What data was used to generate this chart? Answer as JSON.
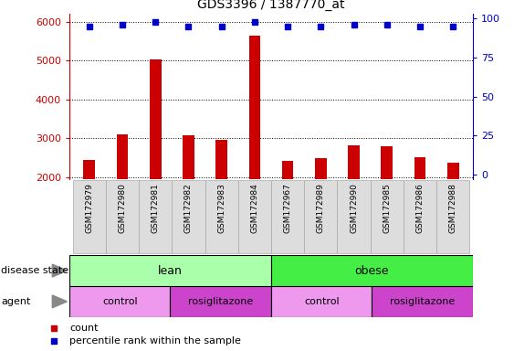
{
  "title": "GDS3396 / 1387770_at",
  "samples": [
    "GSM172979",
    "GSM172980",
    "GSM172981",
    "GSM172982",
    "GSM172983",
    "GSM172984",
    "GSM172967",
    "GSM172989",
    "GSM172990",
    "GSM172985",
    "GSM172986",
    "GSM172988"
  ],
  "counts": [
    2450,
    3100,
    5020,
    3080,
    2950,
    5650,
    2420,
    2480,
    2820,
    2800,
    2500,
    2370
  ],
  "percentile_ranks": [
    95,
    96,
    98,
    95,
    95,
    98,
    95,
    95,
    96,
    96,
    95,
    95
  ],
  "bar_color": "#cc0000",
  "dot_color": "#0000cc",
  "ylim_left": [
    1950,
    6200
  ],
  "ylim_right": [
    -3,
    103
  ],
  "yticks_left": [
    2000,
    3000,
    4000,
    5000,
    6000
  ],
  "yticks_right": [
    0,
    25,
    50,
    75,
    100
  ],
  "color_lean": "#aaffaa",
  "color_obese": "#44ee44",
  "color_control": "#ee99ee",
  "color_rosiglitazone": "#cc44cc",
  "legend_count": "count",
  "legend_percentile": "percentile rank within the sample",
  "label_disease_state": "disease state",
  "label_agent": "agent"
}
